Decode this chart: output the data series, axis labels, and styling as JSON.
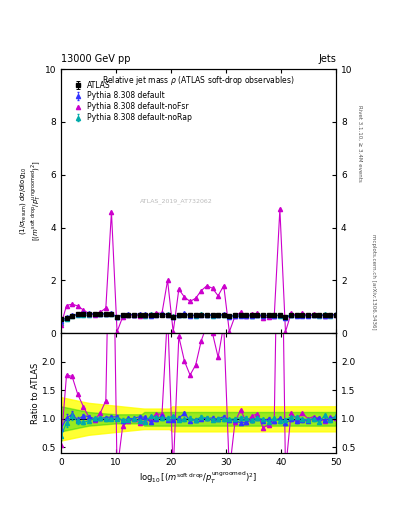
{
  "title_top_left": "13000 GeV pp",
  "title_top_right": "Jets",
  "plot_title": "Relative jet mass ρ (ATLAS soft-drop observables)",
  "rivet_label": "Rivet 3.1.10, ≥ 3.4M events",
  "arxiv_label": "mcplots.cern.ch [arXiv:1306.3436]",
  "watermark": "ATLAS_2019_AT732062",
  "legend_entries": [
    "ATLAS",
    "Pythia 8.308 default",
    "Pythia 8.308 default-noFsr",
    "Pythia 8.308 default-noRap"
  ],
  "colors": {
    "atlas": "#000000",
    "pythia_default": "#3333ff",
    "pythia_noFsr": "#cc00cc",
    "pythia_noRap": "#00aaaa"
  },
  "main_ylim": [
    0,
    10
  ],
  "main_yticks": [
    0,
    2,
    4,
    6,
    8,
    10
  ],
  "ratio_ylim": [
    0.4,
    2.5
  ],
  "ratio_yticks": [
    0.5,
    1.0,
    1.5,
    2.0
  ],
  "xlim": [
    0,
    50
  ],
  "xticks": [
    0,
    10,
    20,
    30,
    40,
    50
  ]
}
